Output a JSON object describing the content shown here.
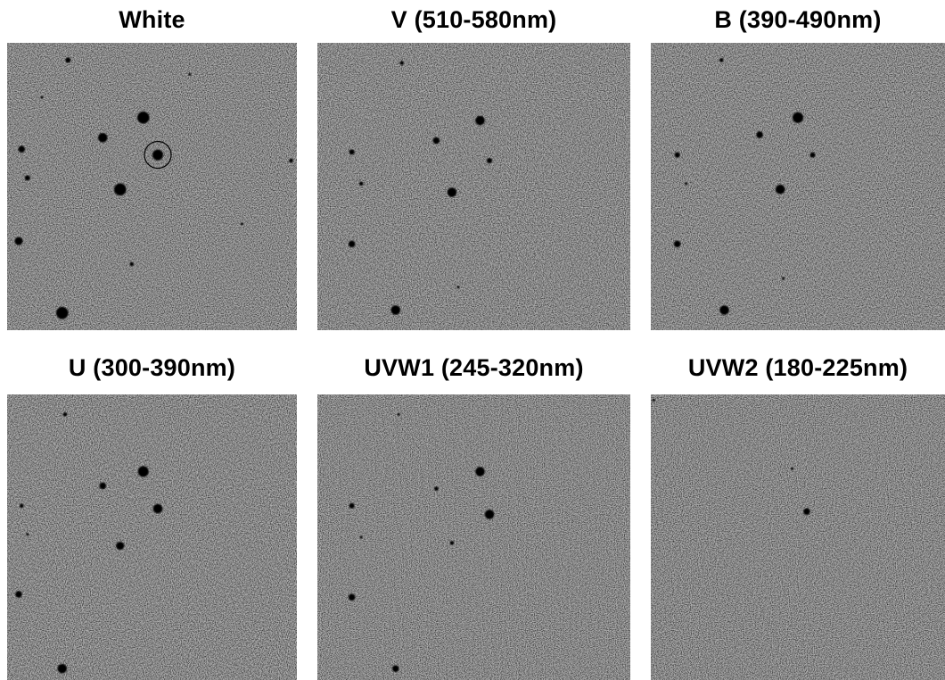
{
  "colors": {
    "background": "#ffffff",
    "sky": "#b4b4b4",
    "star": "#000000"
  },
  "panels": [
    {
      "title": "White",
      "marker": true,
      "stars": [
        [
          0.21,
          0.06,
          4
        ],
        [
          0.47,
          0.26,
          9
        ],
        [
          0.33,
          0.33,
          7
        ],
        [
          0.52,
          0.39,
          8
        ],
        [
          0.05,
          0.37,
          5
        ],
        [
          0.07,
          0.47,
          4
        ],
        [
          0.39,
          0.51,
          9
        ],
        [
          0.98,
          0.41,
          3
        ],
        [
          0.04,
          0.69,
          6
        ],
        [
          0.43,
          0.77,
          3
        ],
        [
          0.19,
          0.94,
          9
        ],
        [
          0.63,
          0.11,
          2
        ],
        [
          0.12,
          0.19,
          2
        ],
        [
          0.81,
          0.63,
          2
        ]
      ],
      "streaks": [
        0.51,
        0.81
      ]
    },
    {
      "title": "V (510-580nm)",
      "marker": false,
      "stars": [
        [
          0.27,
          0.07,
          3
        ],
        [
          0.52,
          0.27,
          7
        ],
        [
          0.38,
          0.34,
          5
        ],
        [
          0.55,
          0.41,
          4
        ],
        [
          0.11,
          0.38,
          4
        ],
        [
          0.14,
          0.49,
          3
        ],
        [
          0.43,
          0.52,
          7
        ],
        [
          0.11,
          0.7,
          5
        ],
        [
          0.45,
          0.85,
          2
        ],
        [
          0.25,
          0.93,
          7
        ]
      ],
      "streaks": []
    },
    {
      "title": "B (390-490nm)",
      "marker": false,
      "stars": [
        [
          0.24,
          0.06,
          3
        ],
        [
          0.5,
          0.26,
          8
        ],
        [
          0.37,
          0.32,
          5
        ],
        [
          0.55,
          0.39,
          4
        ],
        [
          0.09,
          0.39,
          4
        ],
        [
          0.12,
          0.49,
          2
        ],
        [
          0.44,
          0.51,
          7
        ],
        [
          0.09,
          0.7,
          5
        ],
        [
          0.45,
          0.82,
          2
        ],
        [
          0.25,
          0.93,
          7
        ]
      ],
      "streaks": []
    },
    {
      "title": "U (300-390nm)",
      "marker": false,
      "stars": [
        [
          0.2,
          0.07,
          3
        ],
        [
          0.47,
          0.27,
          8
        ],
        [
          0.33,
          0.32,
          5
        ],
        [
          0.52,
          0.4,
          7
        ],
        [
          0.05,
          0.39,
          3
        ],
        [
          0.07,
          0.49,
          2
        ],
        [
          0.39,
          0.53,
          6
        ],
        [
          0.04,
          0.7,
          5
        ],
        [
          0.19,
          0.96,
          7
        ]
      ],
      "streaks": [
        0.51
      ]
    },
    {
      "title": "UVW1 (245-320nm)",
      "marker": false,
      "stars": [
        [
          0.26,
          0.07,
          2
        ],
        [
          0.52,
          0.27,
          7
        ],
        [
          0.38,
          0.33,
          3
        ],
        [
          0.55,
          0.42,
          7
        ],
        [
          0.11,
          0.39,
          4
        ],
        [
          0.14,
          0.5,
          2
        ],
        [
          0.43,
          0.52,
          3
        ],
        [
          0.11,
          0.71,
          5
        ],
        [
          0.25,
          0.96,
          5
        ]
      ],
      "streaks": [
        0.14
      ]
    },
    {
      "title": "UVW2 (180-225nm)",
      "marker": false,
      "stars": [
        [
          0.53,
          0.41,
          5
        ],
        [
          0.48,
          0.26,
          2
        ],
        [
          0.01,
          0.02,
          2
        ]
      ],
      "streaks": []
    }
  ]
}
